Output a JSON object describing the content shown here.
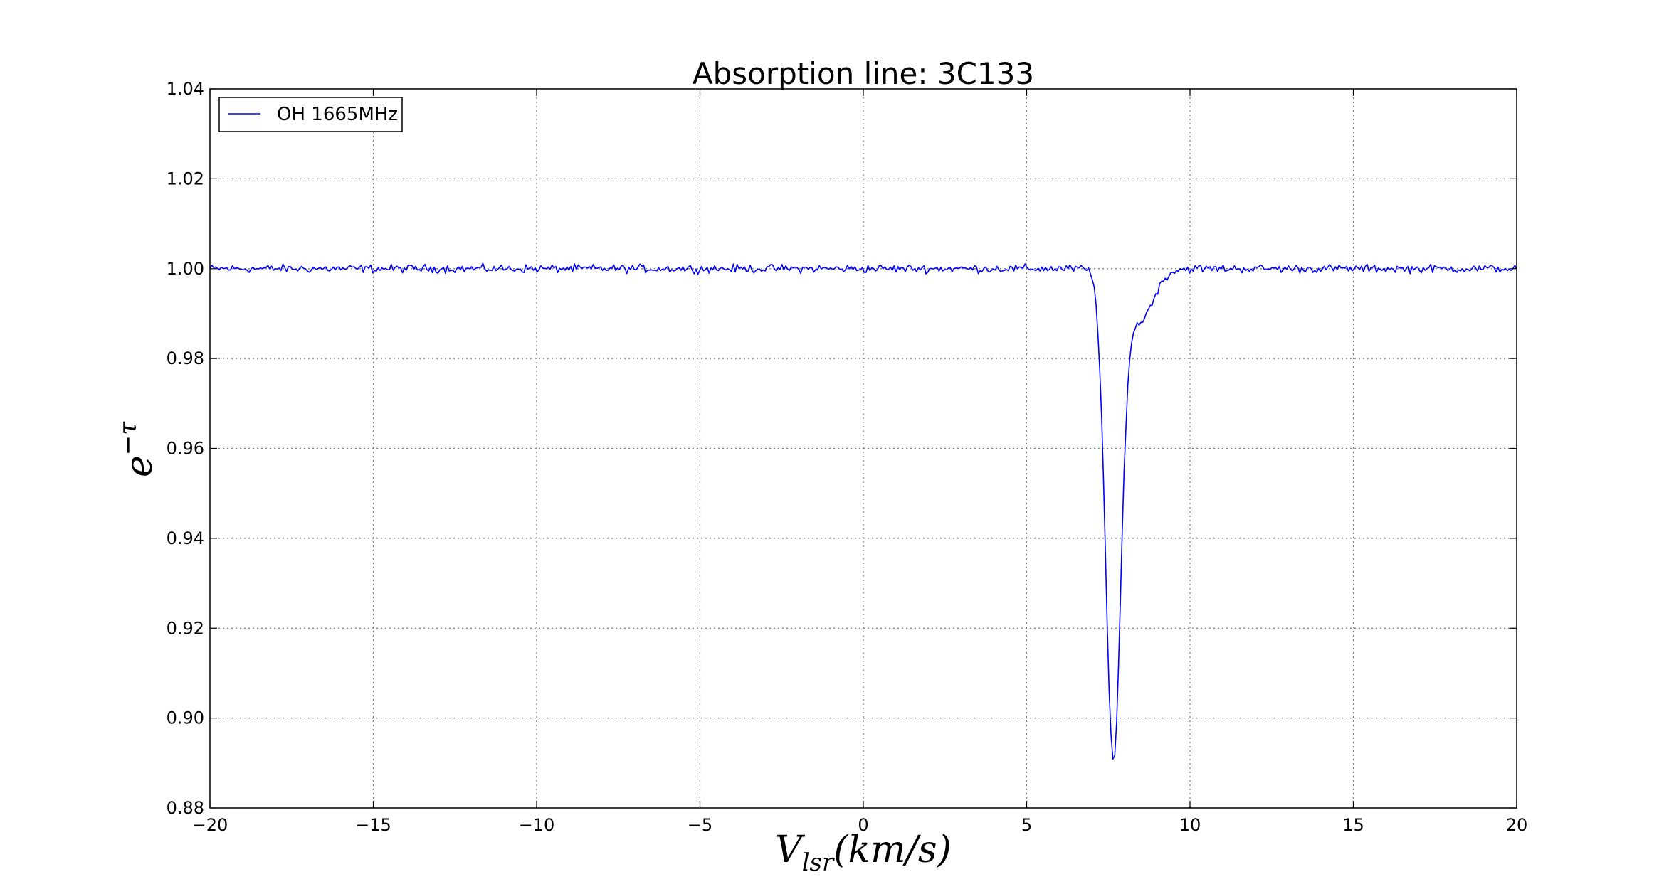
{
  "chart_data": {
    "type": "line",
    "title": "Absorption line: 3C133",
    "xlabel_main": "V",
    "xlabel_sub": "lsr",
    "xlabel_rest": "(km/s)",
    "ylabel_base": "e",
    "ylabel_sup": "−τ",
    "xlim": [
      -20,
      20
    ],
    "ylim": [
      0.88,
      1.04
    ],
    "xticks": [
      -20,
      -15,
      -10,
      -5,
      0,
      5,
      10,
      15,
      20
    ],
    "xtick_labels": [
      "−20",
      "−15",
      "−10",
      "−5",
      "0",
      "5",
      "10",
      "15",
      "20"
    ],
    "yticks": [
      0.88,
      0.9,
      0.92,
      0.94,
      0.96,
      0.98,
      1.0,
      1.02,
      1.04
    ],
    "ytick_labels": [
      "0.88",
      "0.90",
      "0.92",
      "0.94",
      "0.96",
      "0.98",
      "1.00",
      "1.02",
      "1.04"
    ],
    "grid": true,
    "legend_position": "top-left",
    "series": [
      {
        "name": "OH 1665MHz",
        "color": "#0000ff",
        "baseline": 1.0,
        "noise_amplitude": 0.0009,
        "n_points": 700,
        "features": [
          {
            "kind": "gaussian_absorption",
            "center": 7.65,
            "depth": 0.107,
            "sigma": 0.23
          },
          {
            "kind": "gaussian_absorption",
            "center": 8.4,
            "depth": 0.012,
            "sigma": 0.45
          }
        ]
      }
    ]
  }
}
